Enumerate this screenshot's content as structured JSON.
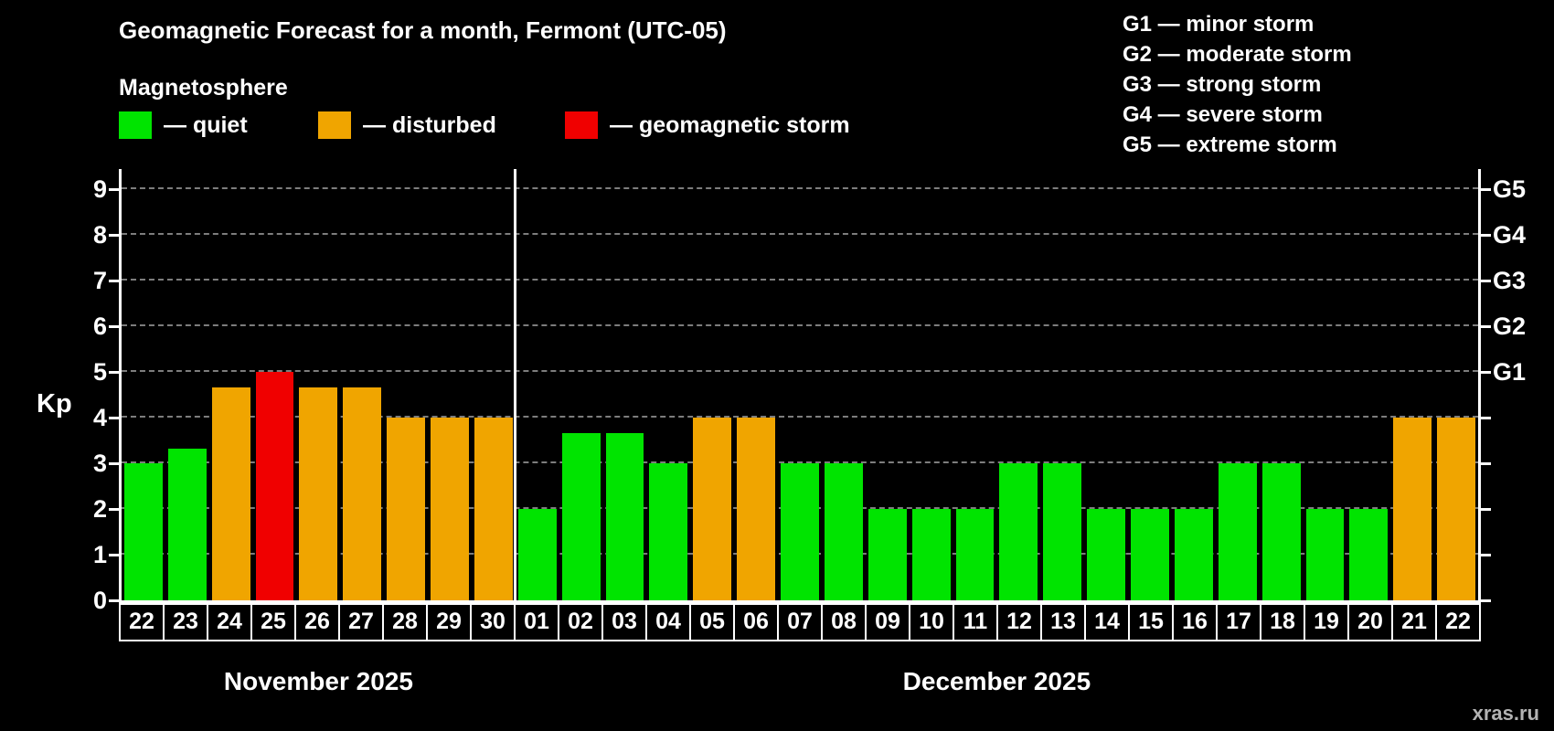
{
  "title": "Geomagnetic Forecast for a month, Fermont (UTC-05)",
  "subtitle": "Magnetosphere",
  "legend": {
    "quiet": {
      "label": "— quiet",
      "color": "#00e400"
    },
    "disturbed": {
      "label": "— disturbed",
      "color": "#f0a500"
    },
    "storm": {
      "label": "— geomagnetic storm",
      "color": "#f00000"
    }
  },
  "storm_scale": [
    {
      "label": "G1 — minor storm"
    },
    {
      "label": "G2 — moderate storm"
    },
    {
      "label": "G3 — strong storm"
    },
    {
      "label": "G4 — severe storm"
    },
    {
      "label": "G5 — extreme storm"
    }
  ],
  "watermark": "xras.ru",
  "chart_data": {
    "type": "bar",
    "title": "Geomagnetic Forecast for a month, Fermont (UTC-05)",
    "ylabel": "Kp",
    "ylim": [
      0,
      9.5
    ],
    "yticks": [
      0,
      1,
      2,
      3,
      4,
      5,
      6,
      7,
      8,
      9
    ],
    "right_ticks": [
      {
        "value": 5,
        "label": "G1"
      },
      {
        "value": 6,
        "label": "G2"
      },
      {
        "value": 7,
        "label": "G3"
      },
      {
        "value": 8,
        "label": "G4"
      },
      {
        "value": 9,
        "label": "G5"
      }
    ],
    "grid": "dashed-horizontal",
    "legend_position": "top-left",
    "colors": {
      "quiet": "#00e400",
      "disturbed": "#f0a500",
      "storm": "#f00000"
    },
    "months": [
      {
        "label": "November 2025",
        "days": [
          {
            "day": "22",
            "kp": 3.0,
            "status": "quiet"
          },
          {
            "day": "23",
            "kp": 3.33,
            "status": "quiet"
          },
          {
            "day": "24",
            "kp": 4.67,
            "status": "disturbed"
          },
          {
            "day": "25",
            "kp": 5.0,
            "status": "storm"
          },
          {
            "day": "26",
            "kp": 4.67,
            "status": "disturbed"
          },
          {
            "day": "27",
            "kp": 4.67,
            "status": "disturbed"
          },
          {
            "day": "28",
            "kp": 4.0,
            "status": "disturbed"
          },
          {
            "day": "29",
            "kp": 4.0,
            "status": "disturbed"
          },
          {
            "day": "30",
            "kp": 4.0,
            "status": "disturbed"
          }
        ]
      },
      {
        "label": "December 2025",
        "days": [
          {
            "day": "01",
            "kp": 2.0,
            "status": "quiet"
          },
          {
            "day": "02",
            "kp": 3.67,
            "status": "quiet"
          },
          {
            "day": "03",
            "kp": 3.67,
            "status": "quiet"
          },
          {
            "day": "04",
            "kp": 3.0,
            "status": "quiet"
          },
          {
            "day": "05",
            "kp": 4.0,
            "status": "disturbed"
          },
          {
            "day": "06",
            "kp": 4.0,
            "status": "disturbed"
          },
          {
            "day": "07",
            "kp": 3.0,
            "status": "quiet"
          },
          {
            "day": "08",
            "kp": 3.0,
            "status": "quiet"
          },
          {
            "day": "09",
            "kp": 2.0,
            "status": "quiet"
          },
          {
            "day": "10",
            "kp": 2.0,
            "status": "quiet"
          },
          {
            "day": "11",
            "kp": 2.0,
            "status": "quiet"
          },
          {
            "day": "12",
            "kp": 3.0,
            "status": "quiet"
          },
          {
            "day": "13",
            "kp": 3.0,
            "status": "quiet"
          },
          {
            "day": "14",
            "kp": 2.0,
            "status": "quiet"
          },
          {
            "day": "15",
            "kp": 2.0,
            "status": "quiet"
          },
          {
            "day": "16",
            "kp": 2.0,
            "status": "quiet"
          },
          {
            "day": "17",
            "kp": 3.0,
            "status": "quiet"
          },
          {
            "day": "18",
            "kp": 3.0,
            "status": "quiet"
          },
          {
            "day": "19",
            "kp": 2.0,
            "status": "quiet"
          },
          {
            "day": "20",
            "kp": 2.0,
            "status": "quiet"
          },
          {
            "day": "21",
            "kp": 4.0,
            "status": "disturbed"
          },
          {
            "day": "22",
            "kp": 4.0,
            "status": "disturbed"
          }
        ]
      }
    ]
  }
}
